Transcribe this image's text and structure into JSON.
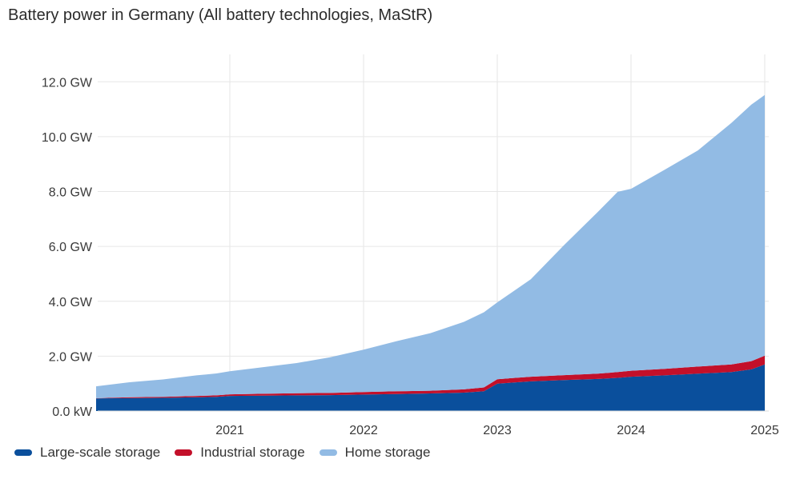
{
  "title": "Battery power in Germany (All battery technologies, MaStR)",
  "colors": {
    "large_scale": "#0a4f9c",
    "industrial": "#c3102a",
    "home": "#92bbe4",
    "grid": "#e6e6e6",
    "axis": "#dddddd"
  },
  "chart_data": {
    "type": "area",
    "stacked": true,
    "title": "Battery power in Germany (All battery technologies, MaStR)",
    "xlabel": "",
    "ylabel": "",
    "ylim": [
      0,
      13
    ],
    "y_ticks": [
      0,
      2,
      4,
      6,
      8,
      10,
      12
    ],
    "y_tick_labels": [
      "0.0 kW",
      "2.0 GW",
      "4.0 GW",
      "6.0 GW",
      "8.0 GW",
      "10.0 GW",
      "12.0 GW"
    ],
    "x_ticks": [
      2021,
      2022,
      2023,
      2024,
      2025
    ],
    "x_tick_labels": [
      "2021",
      "2022",
      "2023",
      "2024",
      "2025"
    ],
    "grid": true,
    "legend_position": "bottom-left",
    "x": [
      2020.0,
      2020.25,
      2020.5,
      2020.75,
      2020.9,
      2021.0,
      2021.25,
      2021.5,
      2021.75,
      2022.0,
      2022.25,
      2022.5,
      2022.75,
      2022.9,
      2023.0,
      2023.25,
      2023.5,
      2023.75,
      2023.9,
      2024.0,
      2024.25,
      2024.5,
      2024.75,
      2024.9,
      2025.0
    ],
    "series": [
      {
        "name": "Large-scale storage",
        "values": [
          0.46,
          0.47,
          0.48,
          0.5,
          0.52,
          0.55,
          0.56,
          0.57,
          0.58,
          0.6,
          0.62,
          0.64,
          0.67,
          0.72,
          1.0,
          1.08,
          1.13,
          1.17,
          1.21,
          1.25,
          1.3,
          1.36,
          1.42,
          1.52,
          1.7
        ]
      },
      {
        "name": "Industrial storage",
        "values": [
          0.01,
          0.03,
          0.04,
          0.05,
          0.05,
          0.06,
          0.07,
          0.08,
          0.08,
          0.09,
          0.1,
          0.1,
          0.12,
          0.14,
          0.16,
          0.17,
          0.18,
          0.19,
          0.21,
          0.22,
          0.24,
          0.26,
          0.28,
          0.3,
          0.32
        ]
      },
      {
        "name": "Home storage",
        "values": [
          0.43,
          0.55,
          0.63,
          0.75,
          0.8,
          0.84,
          0.97,
          1.1,
          1.3,
          1.55,
          1.83,
          2.1,
          2.46,
          2.74,
          2.8,
          3.55,
          4.74,
          5.89,
          6.57,
          6.63,
          7.25,
          7.88,
          8.8,
          9.35,
          9.5
        ]
      }
    ]
  },
  "legend": [
    {
      "label": "Large-scale storage",
      "color": "#0a4f9c"
    },
    {
      "label": "Industrial storage",
      "color": "#c3102a"
    },
    {
      "label": "Home storage",
      "color": "#92bbe4"
    }
  ]
}
